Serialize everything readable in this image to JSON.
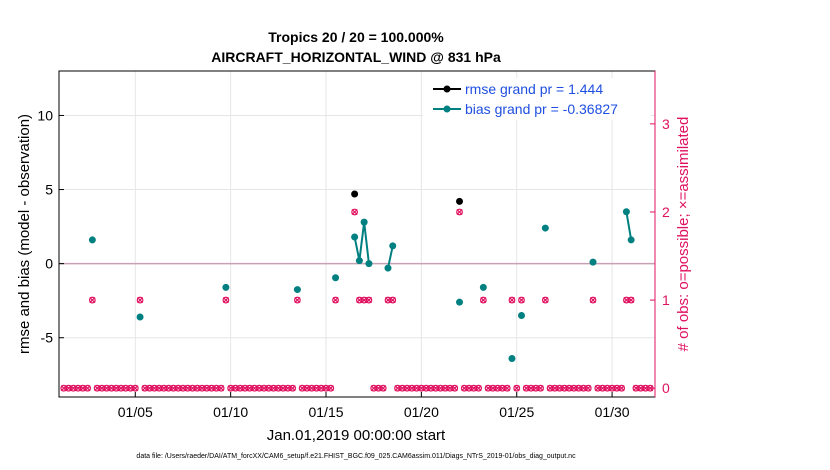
{
  "chart_data": {
    "type": "scatter",
    "title_line1": "Tropics 20 / 20 = 100.000%",
    "title_line2": "AIRCRAFT_HORIZONTAL_WIND @ 831 hPa",
    "xlabel": "Jan.01,2019 00:00:00 start",
    "ylabel_left": "rmse and bias (model - observation)",
    "ylabel_right": "# of obs: o=possible; ×=assimilated",
    "footnote": "data file: /Users/raeder/DAI/ATM_forcXX/CAM6_setup/f.e21.FHIST_BGC.f09_025.CAM6assim.011/Diags_NTrS_2019-01/obs_diag_output.nc",
    "xlim": [
      1.0,
      32.25
    ],
    "ylim_left": [
      -9,
      13
    ],
    "ylim_right": [
      -0.1,
      3.6
    ],
    "left_ticks": [
      -5,
      0,
      5,
      10
    ],
    "left_tick_labels": [
      "-5",
      "0",
      "5",
      "10"
    ],
    "right_ticks": [
      0,
      1,
      2,
      3
    ],
    "right_tick_labels": [
      "0",
      "1",
      "2",
      "3"
    ],
    "x_ticks": [
      5,
      10,
      15,
      20,
      25,
      30
    ],
    "x_tick_labels": [
      "01/05",
      "01/10",
      "01/15",
      "01/20",
      "01/25",
      "01/30"
    ],
    "legend": {
      "position": "top-right",
      "rmse_label": "rmse grand pr = 1.444",
      "bias_label": "bias grand pr = -0.36827"
    },
    "colors": {
      "rmse": "#000000",
      "bias": "#008080",
      "obs": "#e0115f",
      "legend_text": "#1f4fe0",
      "zero_line": "#c8a0b4"
    },
    "rmse_points": [
      [
        16.5,
        4.7
      ],
      [
        22.0,
        4.2
      ]
    ],
    "bias_segments": [
      [
        [
          2.75,
          1.6
        ]
      ],
      [
        [
          5.25,
          -3.6
        ]
      ],
      [
        [
          9.75,
          -1.6
        ]
      ],
      [
        [
          13.5,
          -1.75
        ]
      ],
      [
        [
          15.5,
          -0.95
        ]
      ],
      [
        [
          16.5,
          1.8
        ],
        [
          16.75,
          0.2
        ],
        [
          17.0,
          2.8
        ],
        [
          17.25,
          0.0
        ]
      ],
      [
        [
          18.25,
          -0.3
        ],
        [
          18.5,
          1.2
        ]
      ],
      [
        [
          22.0,
          -2.6
        ]
      ],
      [
        [
          23.25,
          -1.6
        ]
      ],
      [
        [
          24.75,
          -6.4
        ]
      ],
      [
        [
          25.25,
          -3.5
        ]
      ],
      [
        [
          26.5,
          2.4
        ]
      ],
      [
        [
          29.0,
          0.1
        ]
      ],
      [
        [
          30.75,
          3.5
        ],
        [
          31.0,
          1.6
        ]
      ]
    ],
    "obs_possible_one": [
      2.75,
      5.25,
      9.75,
      13.5,
      15.5,
      16.75,
      17.0,
      17.25,
      18.25,
      18.5,
      23.25,
      24.75,
      25.25,
      26.5,
      29.0,
      30.75,
      31.0
    ],
    "obs_possible_two": [
      16.5,
      22.0
    ],
    "obs_zero_ranges": [
      [
        1.25,
        2.5
      ],
      [
        3.0,
        5.0
      ],
      [
        5.5,
        9.5
      ],
      [
        10.0,
        13.25
      ],
      [
        13.75,
        15.25
      ],
      [
        17.5,
        18.0
      ],
      [
        18.75,
        21.75
      ],
      [
        22.25,
        23.0
      ],
      [
        23.5,
        24.5
      ],
      [
        25.0,
        25.0
      ],
      [
        25.5,
        26.25
      ],
      [
        26.75,
        28.75
      ],
      [
        29.25,
        30.5
      ],
      [
        31.25,
        32.0
      ]
    ]
  }
}
